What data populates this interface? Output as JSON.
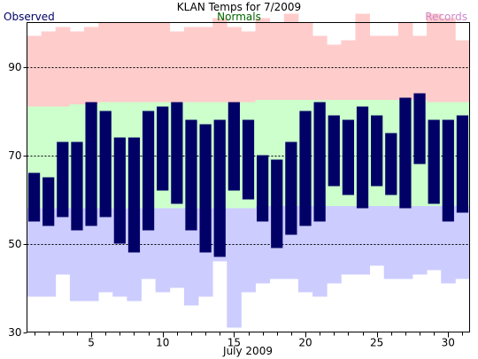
{
  "chart_data": {
    "type": "bar",
    "title": "KLAN Temps for 7/2009",
    "xlabel": "July 2009",
    "ylabel": "",
    "xlim": [
      0.5,
      31.5
    ],
    "ylim": [
      30,
      100
    ],
    "x_ticks": [
      5,
      10,
      15,
      20,
      25,
      30
    ],
    "y_ticks": [
      30,
      50,
      70,
      90
    ],
    "grid_lines_y": [
      50,
      70,
      90
    ],
    "legend": {
      "observed": "Observed",
      "normals": "Normals",
      "records": "Records"
    },
    "colors": {
      "observed": "#000066",
      "normals": "#ccffcc",
      "records_high": "#ffcccc",
      "records_low": "#ccccff",
      "observed_label": "#000066",
      "normals_label": "#006600",
      "records_label": "#cc88cc"
    },
    "days": [
      1,
      2,
      3,
      4,
      5,
      6,
      7,
      8,
      9,
      10,
      11,
      12,
      13,
      14,
      15,
      16,
      17,
      18,
      19,
      20,
      21,
      22,
      23,
      24,
      25,
      26,
      27,
      28,
      29,
      30,
      31
    ],
    "series": [
      {
        "name": "Observed",
        "high": [
          66,
          65,
          73,
          73,
          82,
          80,
          74,
          74,
          80,
          81,
          82,
          78,
          77,
          78,
          82,
          78,
          70,
          69,
          73,
          80,
          82,
          79,
          78,
          81,
          79,
          75,
          83,
          84,
          78,
          78,
          79
        ],
        "low": [
          55,
          54,
          56,
          53,
          54,
          56,
          50,
          48,
          53,
          62,
          59,
          53,
          48,
          47,
          62,
          60,
          55,
          49,
          52,
          54,
          55,
          63,
          61,
          58,
          63,
          61,
          58,
          68,
          59,
          55,
          57
        ]
      },
      {
        "name": "Normals",
        "high": [
          81,
          81,
          81,
          81.5,
          81.5,
          82,
          82,
          82,
          82,
          82,
          82,
          82,
          82,
          82,
          82,
          82,
          82.5,
          82.5,
          82.5,
          82.5,
          82.5,
          82.5,
          82.5,
          82.5,
          82.5,
          82.5,
          82.5,
          82.5,
          82,
          82,
          82
        ],
        "low": [
          58,
          58,
          58,
          58,
          58,
          58,
          58,
          58,
          58,
          58,
          58,
          58,
          58,
          58,
          58,
          58,
          58.5,
          58.5,
          58.5,
          58.5,
          58.5,
          58.5,
          58.5,
          58.5,
          58.5,
          58.5,
          58.5,
          58.5,
          58.5,
          58.5,
          58.5
        ]
      },
      {
        "name": "Records",
        "high": [
          97,
          98,
          99,
          98,
          99,
          100,
          100,
          100,
          100,
          100,
          98,
          99,
          99,
          101,
          99,
          98,
          101,
          100,
          102,
          100,
          97,
          95,
          96,
          102,
          97,
          97,
          100,
          97,
          102,
          101,
          96
        ],
        "low": [
          38,
          38,
          43,
          37,
          37,
          39,
          38,
          37,
          42,
          39,
          40,
          36,
          38,
          46,
          31,
          39,
          41,
          42,
          42,
          39,
          38,
          41,
          43,
          43,
          45,
          42,
          42,
          43,
          44,
          41,
          42
        ]
      }
    ]
  }
}
